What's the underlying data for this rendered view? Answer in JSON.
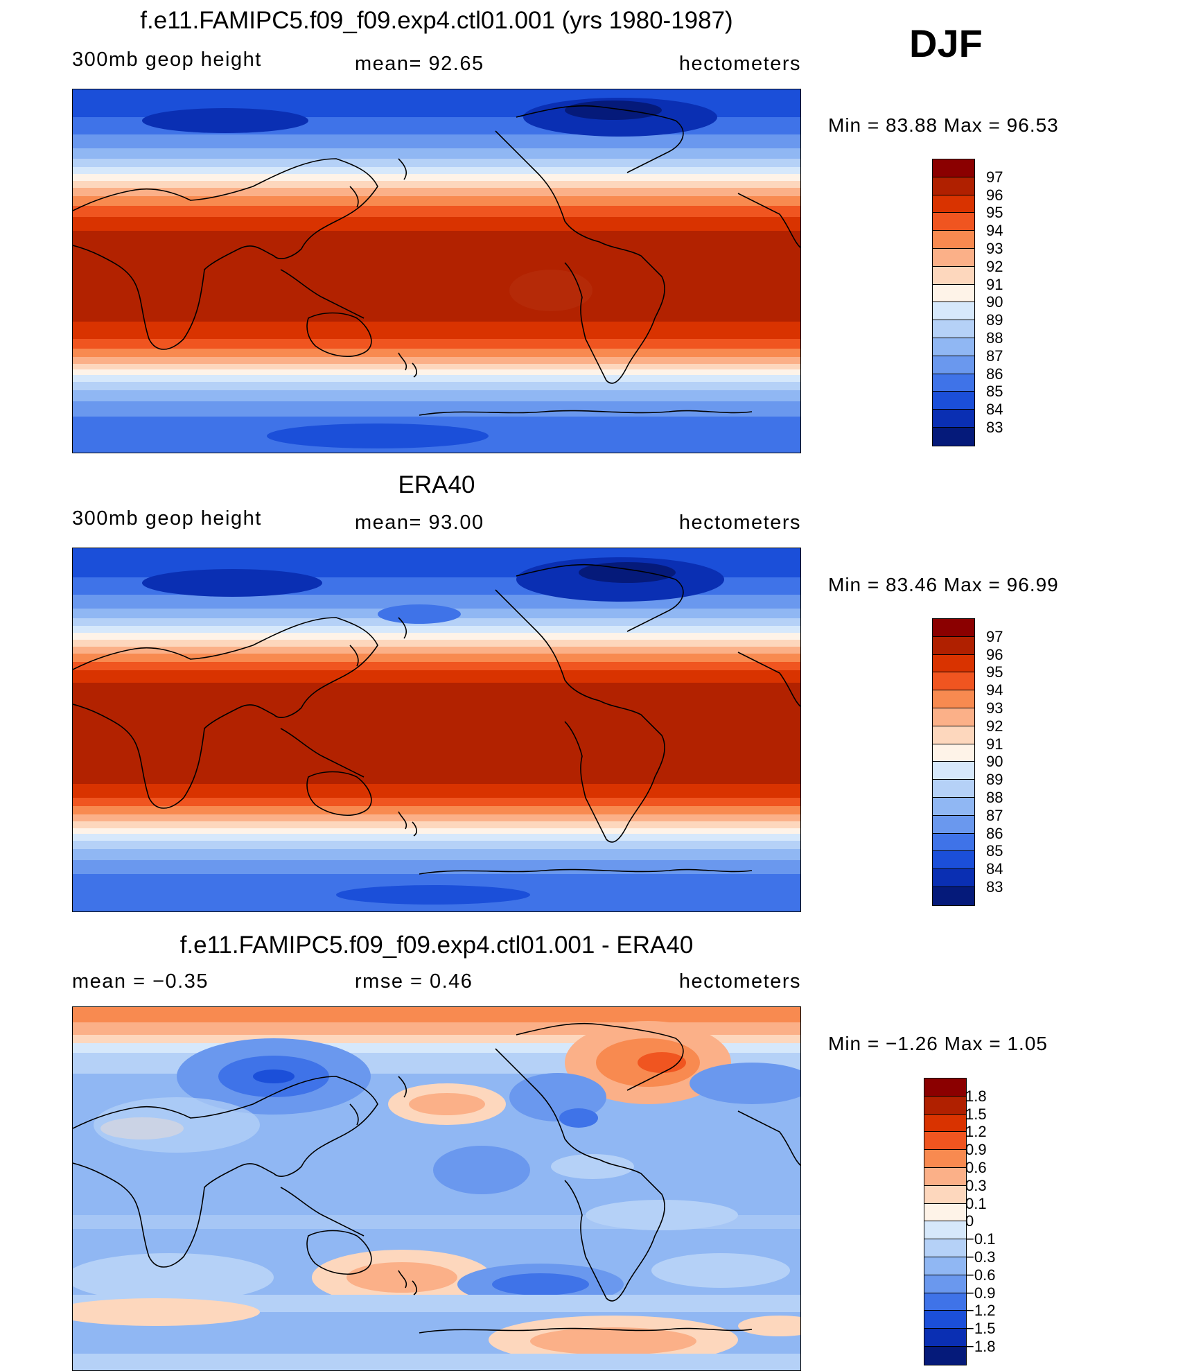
{
  "season": "DJF",
  "panels": [
    {
      "title": "f.e11.FAMIPC5.f09_f09.exp4.ctl01.001 (yrs 1980-1987)",
      "left_label": "300mb  geop  height",
      "center_label": "mean=   92.65",
      "units": "hectometers",
      "minmax": "Min  =    83.88  Max  =    96.53",
      "colorbar": {
        "labels": [
          "97",
          "96",
          "95",
          "94",
          "93",
          "92",
          "91",
          "90",
          "89",
          "88",
          "87",
          "86",
          "85",
          "84",
          "83"
        ],
        "colors": [
          "#8b0000",
          "#b02000",
          "#d93300",
          "#f05520",
          "#f88a50",
          "#fbb088",
          "#fdd7bd",
          "#fef3e8",
          "#d6e8fb",
          "#b5d1f7",
          "#90b7f3",
          "#6a98ee",
          "#3f73e8",
          "#1b4fd9",
          "#0a2fb3",
          "#051a7a"
        ]
      }
    },
    {
      "title": "ERA40",
      "left_label": "300mb  geop  height",
      "center_label": "mean=   93.00",
      "units": "hectometers",
      "minmax": "Min  =    83.46  Max  =    96.99",
      "colorbar": {
        "labels": [
          "97",
          "96",
          "95",
          "94",
          "93",
          "92",
          "91",
          "90",
          "89",
          "88",
          "87",
          "86",
          "85",
          "84",
          "83"
        ],
        "colors": [
          "#8b0000",
          "#b02000",
          "#d93300",
          "#f05520",
          "#f88a50",
          "#fbb088",
          "#fdd7bd",
          "#fef3e8",
          "#d6e8fb",
          "#b5d1f7",
          "#90b7f3",
          "#6a98ee",
          "#3f73e8",
          "#1b4fd9",
          "#0a2fb3",
          "#051a7a"
        ]
      }
    },
    {
      "title": "f.e11.FAMIPC5.f09_f09.exp4.ctl01.001 - ERA40",
      "left_label": "mean  =    −0.35",
      "center_label": "rmse  =     0.46",
      "units": "hectometers",
      "minmax": "Min  =    −1.26  Max  =      1.05",
      "colorbar": {
        "labels": [
          "1.8",
          "1.5",
          "1.2",
          "0.9",
          "0.6",
          "0.3",
          "0.1",
          "0",
          "−0.1",
          "−0.3",
          "−0.6",
          "−0.9",
          "−1.2",
          "−1.5",
          "−1.8"
        ],
        "colors": [
          "#8b0000",
          "#b02000",
          "#d93300",
          "#f05520",
          "#f88a50",
          "#fbb088",
          "#fdd7bd",
          "#fef3e8",
          "#d6e8fb",
          "#b5d1f7",
          "#90b7f3",
          "#6a98ee",
          "#3f73e8",
          "#1b4fd9",
          "#0a2fb3",
          "#051a7a"
        ]
      }
    }
  ]
}
